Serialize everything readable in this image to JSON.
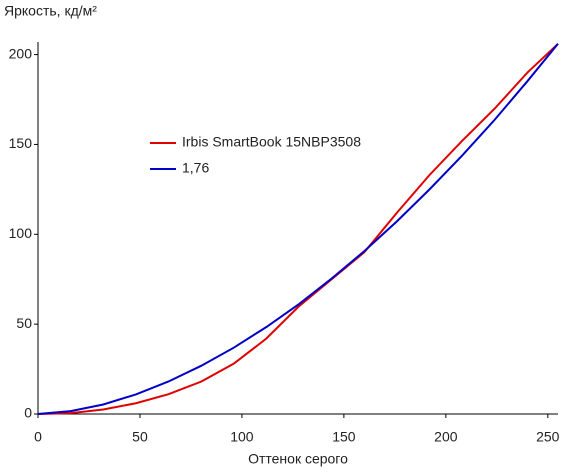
{
  "chart_data": {
    "type": "line",
    "y_label": "Яркость, кд/м²",
    "x_label": "Оттенок серого",
    "x": [
      0,
      16,
      32,
      48,
      64,
      80,
      96,
      112,
      128,
      144,
      160,
      176,
      192,
      208,
      224,
      240,
      255
    ],
    "series": [
      {
        "name": "Irbis SmartBook 15NBP3508",
        "color": "#e00000",
        "values": [
          0,
          0.5,
          2.5,
          6,
          11,
          18,
          28,
          42,
          60,
          75,
          90,
          112,
          133,
          152,
          170,
          190,
          206
        ]
      },
      {
        "name": "1,76",
        "color": "#0000c8",
        "values": [
          0,
          1.6,
          5.3,
          10.9,
          18.1,
          26.8,
          36.9,
          48.4,
          61.2,
          75.4,
          90.6,
          107.2,
          125,
          143.8,
          163.8,
          185.2,
          206
        ]
      }
    ],
    "xlim": [
      0,
      255
    ],
    "xticks": [
      0,
      50,
      100,
      150,
      200,
      250
    ],
    "ylim": [
      0,
      207
    ],
    "yticks": [
      0,
      50,
      100,
      150,
      200
    ]
  }
}
